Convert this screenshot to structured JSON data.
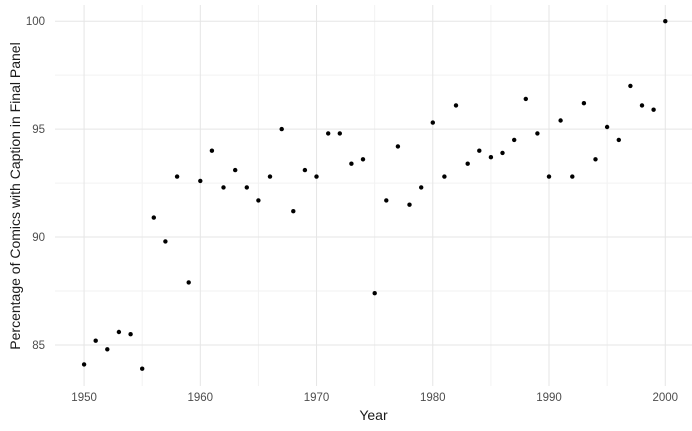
{
  "chart_data": {
    "type": "scatter",
    "title": "",
    "xlabel": "Year",
    "ylabel": "Percentage of Comics with Caption in Final Panel",
    "legend": false,
    "grid": true,
    "xlim": [
      1947.5,
      2002.3
    ],
    "ylim": [
      83.1,
      100.75
    ],
    "x_ticks": [
      1950,
      1960,
      1970,
      1980,
      1990,
      2000
    ],
    "x_minor_ticks": [
      1955,
      1965,
      1975,
      1985,
      1995
    ],
    "y_ticks": [
      85,
      90,
      95,
      100
    ],
    "y_minor_ticks": [
      87.5,
      92.5,
      97.5
    ],
    "point_color": "#000000",
    "grid_major_color": "#e5e5e5",
    "grid_minor_color": "#f2f2f2",
    "tick_label_color": "#4d4d4d",
    "axis_title_color": "#1a1a1a",
    "background_color": "#ffffff",
    "x": [
      1950,
      1951,
      1952,
      1953,
      1954,
      1955,
      1956,
      1957,
      1958,
      1959,
      1960,
      1961,
      1962,
      1963,
      1964,
      1965,
      1966,
      1967,
      1968,
      1969,
      1970,
      1971,
      1972,
      1973,
      1974,
      1975,
      1976,
      1977,
      1978,
      1979,
      1980,
      1981,
      1982,
      1983,
      1984,
      1985,
      1986,
      1987,
      1988,
      1989,
      1990,
      1991,
      1992,
      1993,
      1994,
      1995,
      1996,
      1997,
      1998,
      1999,
      2000
    ],
    "y": [
      84.1,
      85.2,
      84.8,
      85.6,
      85.5,
      83.9,
      90.9,
      89.8,
      92.8,
      87.9,
      92.6,
      94.0,
      92.3,
      93.1,
      92.3,
      91.7,
      92.8,
      95.0,
      91.2,
      93.1,
      92.8,
      94.8,
      94.8,
      93.4,
      93.6,
      87.4,
      91.7,
      94.2,
      91.5,
      92.3,
      95.3,
      92.8,
      96.1,
      93.4,
      94.0,
      93.7,
      93.9,
      94.5,
      96.4,
      94.8,
      92.8,
      95.4,
      92.8,
      96.2,
      93.6,
      95.1,
      94.5,
      97.0,
      96.1,
      95.9,
      100.0
    ]
  }
}
